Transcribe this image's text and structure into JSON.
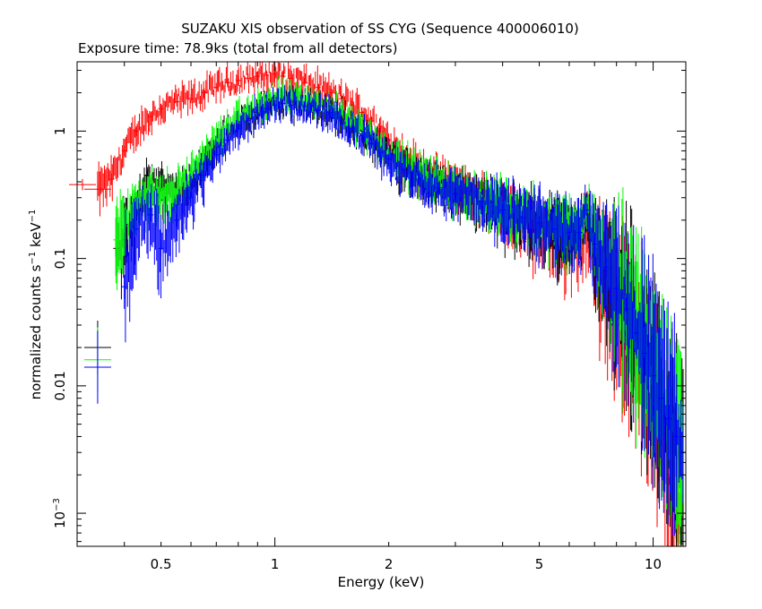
{
  "chart_data": {
    "type": "scatter",
    "title": "SUZAKU XIS observation of SS CYG (Sequence 400006010)",
    "subtitle": "Exposure time: 78.9ks (total from all detectors)",
    "xlabel": "Energy (keV)",
    "ylabel_parts": {
      "a": "normalized counts s",
      "b": "−1",
      "c": " keV",
      "d": "−1"
    },
    "x_scale": "log",
    "y_scale": "log",
    "xlim": [
      0.3,
      12.2
    ],
    "ylim": [
      0.00055,
      3.5
    ],
    "x_tick_labels": [
      {
        "value": 0.5,
        "label": "0.5"
      },
      {
        "value": 1,
        "label": "1"
      },
      {
        "value": 2,
        "label": "2"
      },
      {
        "value": 5,
        "label": "5"
      },
      {
        "value": 10,
        "label": "10"
      }
    ],
    "y_tick_labels": [
      {
        "value": 1,
        "label": "1"
      },
      {
        "value": 0.1,
        "label": "0.1"
      },
      {
        "value": 0.01,
        "label": "0.01"
      },
      {
        "value": 0.001,
        "base": "10",
        "exp": "−3"
      }
    ],
    "grid": false,
    "legend": "none",
    "series": [
      {
        "color": "#ff0000",
        "x": [
          0.31,
          0.34,
          0.37,
          0.4,
          0.43,
          0.47,
          0.5,
          0.55,
          0.6,
          0.65,
          0.7,
          0.75,
          0.8,
          0.85,
          0.9,
          0.95,
          1.0,
          1.05,
          1.1,
          1.2,
          1.3,
          1.4,
          1.5,
          1.6,
          1.7,
          1.8,
          1.9,
          2.0,
          2.2,
          2.4,
          2.7,
          3.0,
          3.5,
          4.0,
          4.5,
          5.0,
          5.5,
          6.0,
          6.4,
          6.7,
          7.0,
          7.5,
          8.0,
          8.5,
          9.0,
          9.5,
          10.0,
          10.5,
          11.0,
          11.5,
          12.0
        ],
        "y": [
          0.38,
          0.35,
          0.42,
          0.7,
          1.0,
          1.3,
          1.5,
          1.7,
          1.8,
          2.0,
          2.2,
          2.4,
          2.5,
          2.6,
          2.7,
          2.75,
          2.8,
          2.7,
          2.6,
          2.4,
          2.2,
          2.0,
          1.8,
          1.6,
          1.4,
          1.2,
          1.0,
          0.85,
          0.65,
          0.5,
          0.42,
          0.38,
          0.3,
          0.24,
          0.2,
          0.16,
          0.14,
          0.13,
          0.12,
          0.18,
          0.09,
          0.06,
          0.04,
          0.03,
          0.02,
          0.012,
          0.007,
          0.004,
          0.002,
          0.0013,
          0.001
        ]
      },
      {
        "color": "#000000",
        "x": [
          0.34,
          0.38,
          0.4,
          0.43,
          0.46,
          0.5,
          0.55,
          0.6,
          0.65,
          0.7,
          0.75,
          0.8,
          0.85,
          0.9,
          0.95,
          1.0,
          1.05,
          1.1,
          1.2,
          1.3,
          1.4,
          1.5,
          1.6,
          1.7,
          1.8,
          1.9,
          2.0,
          2.2,
          2.4,
          2.7,
          3.0,
          3.5,
          4.0,
          4.5,
          5.0,
          5.5,
          6.0,
          6.4,
          6.7,
          7.0,
          7.5,
          8.0,
          8.5,
          9.0,
          9.5,
          10.0,
          10.5,
          11.0,
          11.5,
          12.0
        ],
        "y": [
          0.02,
          0.12,
          0.14,
          0.22,
          0.45,
          0.35,
          0.3,
          0.4,
          0.55,
          0.75,
          0.95,
          1.1,
          1.25,
          1.4,
          1.55,
          1.7,
          1.75,
          1.7,
          1.6,
          1.5,
          1.4,
          1.25,
          1.1,
          0.95,
          0.8,
          0.7,
          0.62,
          0.5,
          0.42,
          0.36,
          0.32,
          0.27,
          0.23,
          0.2,
          0.18,
          0.16,
          0.15,
          0.15,
          0.22,
          0.12,
          0.08,
          0.055,
          0.038,
          0.025,
          0.017,
          0.011,
          0.007,
          0.005,
          0.0035,
          0.0025
        ]
      },
      {
        "color": "#00ff00",
        "x": [
          0.34,
          0.38,
          0.4,
          0.43,
          0.46,
          0.5,
          0.55,
          0.6,
          0.65,
          0.7,
          0.75,
          0.8,
          0.85,
          0.9,
          0.95,
          1.0,
          1.05,
          1.1,
          1.2,
          1.3,
          1.4,
          1.5,
          1.6,
          1.7,
          1.8,
          1.9,
          2.0,
          2.2,
          2.4,
          2.7,
          3.0,
          3.5,
          4.0,
          4.5,
          5.0,
          5.5,
          6.0,
          6.4,
          6.7,
          7.0,
          7.5,
          8.0,
          8.5,
          9.0,
          9.5,
          10.0,
          10.5,
          11.0,
          11.5,
          12.0
        ],
        "y": [
          0.016,
          0.14,
          0.18,
          0.28,
          0.32,
          0.3,
          0.32,
          0.45,
          0.62,
          0.85,
          1.05,
          1.25,
          1.4,
          1.55,
          1.7,
          1.85,
          1.9,
          1.85,
          1.75,
          1.65,
          1.5,
          1.35,
          1.2,
          1.05,
          0.9,
          0.78,
          0.68,
          0.55,
          0.46,
          0.39,
          0.34,
          0.29,
          0.25,
          0.22,
          0.2,
          0.18,
          0.17,
          0.17,
          0.25,
          0.14,
          0.09,
          0.062,
          0.042,
          0.028,
          0.019,
          0.012,
          0.008,
          0.0055,
          0.004,
          0.003
        ]
      },
      {
        "color": "#0000ff",
        "x": [
          0.34,
          0.4,
          0.43,
          0.47,
          0.5,
          0.55,
          0.6,
          0.65,
          0.7,
          0.75,
          0.8,
          0.85,
          0.9,
          0.95,
          1.0,
          1.05,
          1.1,
          1.2,
          1.3,
          1.4,
          1.5,
          1.6,
          1.7,
          1.8,
          1.9,
          2.0,
          2.2,
          2.4,
          2.7,
          3.0,
          3.5,
          4.0,
          4.5,
          5.0,
          5.5,
          6.0,
          6.4,
          6.7,
          7.0,
          7.5,
          8.0,
          8.5,
          9.0,
          9.5,
          10.0,
          10.5,
          11.0,
          11.5,
          12.0
        ],
        "y": [
          0.014,
          0.06,
          0.17,
          0.22,
          0.12,
          0.2,
          0.3,
          0.45,
          0.65,
          0.85,
          1.05,
          1.2,
          1.35,
          1.5,
          1.6,
          1.65,
          1.6,
          1.55,
          1.45,
          1.35,
          1.2,
          1.05,
          0.92,
          0.8,
          0.68,
          0.6,
          0.5,
          0.42,
          0.36,
          0.32,
          0.28,
          0.24,
          0.21,
          0.19,
          0.17,
          0.16,
          0.16,
          0.24,
          0.13,
          0.085,
          0.058,
          0.04,
          0.026,
          0.018,
          0.012,
          0.008,
          0.0055,
          0.004,
          0.003
        ]
      }
    ]
  }
}
